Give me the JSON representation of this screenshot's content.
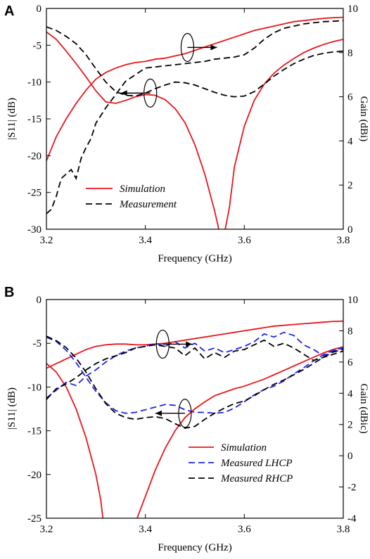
{
  "chart_data": [
    {
      "panel_label": "A",
      "type": "line",
      "xlabel": "Frequency (GHz)",
      "ylabel_left": "|S11| (dB)",
      "ylabel_right": "Gain (dBi)",
      "xlim": [
        3.2,
        3.8
      ],
      "ylim_left": [
        -30,
        0
      ],
      "ylim_right": [
        0,
        10
      ],
      "xticks": [
        "3.2",
        "3.4",
        "3.6",
        "3.8"
      ],
      "yticks_left": [
        "0",
        "-5",
        "-10",
        "-15",
        "-20",
        "-25",
        "-30"
      ],
      "yticks_right": [
        "10",
        "8",
        "6",
        "4",
        "2",
        "0"
      ],
      "grid": false,
      "legend_position": "center",
      "legend": [
        {
          "label": "Simulation",
          "color": "#e8161b",
          "dash": "solid"
        },
        {
          "label": "Measurement",
          "color": "#000000",
          "dash": "dashed"
        }
      ],
      "series": [
        {
          "name": "Simulation",
          "quantity": "S11",
          "axis": "left",
          "color": "#e8161b",
          "dash": "solid",
          "x": [
            3.2,
            3.22,
            3.24,
            3.26,
            3.28,
            3.3,
            3.32,
            3.34,
            3.36,
            3.38,
            3.4,
            3.42,
            3.44,
            3.46,
            3.48,
            3.5,
            3.52,
            3.54,
            3.55,
            3.56,
            3.57,
            3.58,
            3.6,
            3.62,
            3.64,
            3.66,
            3.68,
            3.7,
            3.72,
            3.74,
            3.76,
            3.78,
            3.8
          ],
          "y": [
            -3.2,
            -4.2,
            -5.8,
            -7.5,
            -9.3,
            -11.2,
            -12.7,
            -12.9,
            -12.5,
            -12.0,
            -11.7,
            -11.8,
            -12.4,
            -13.6,
            -15.5,
            -18.5,
            -22.5,
            -27.5,
            -30.5,
            -30.5,
            -27.0,
            -21.5,
            -16.0,
            -12.5,
            -10.3,
            -8.8,
            -7.7,
            -6.8,
            -6.0,
            -5.4,
            -4.9,
            -4.5,
            -4.2
          ]
        },
        {
          "name": "Simulation",
          "quantity": "Gain",
          "axis": "right",
          "color": "#e8161b",
          "dash": "solid",
          "x": [
            3.2,
            3.22,
            3.24,
            3.26,
            3.28,
            3.3,
            3.32,
            3.34,
            3.36,
            3.38,
            3.4,
            3.42,
            3.44,
            3.46,
            3.48,
            3.5,
            3.52,
            3.54,
            3.56,
            3.58,
            3.6,
            3.62,
            3.64,
            3.66,
            3.68,
            3.7,
            3.72,
            3.74,
            3.76,
            3.78,
            3.8
          ],
          "y": [
            3.1,
            4.2,
            5.0,
            5.7,
            6.3,
            6.8,
            7.1,
            7.3,
            7.45,
            7.55,
            7.6,
            7.7,
            7.75,
            7.85,
            7.95,
            8.1,
            8.25,
            8.4,
            8.55,
            8.7,
            8.85,
            9.0,
            9.1,
            9.2,
            9.3,
            9.4,
            9.45,
            9.5,
            9.55,
            9.58,
            9.6
          ]
        },
        {
          "name": "Measurement",
          "quantity": "S11",
          "axis": "left",
          "color": "#000000",
          "dash": "dashed",
          "x": [
            3.2,
            3.22,
            3.24,
            3.26,
            3.28,
            3.3,
            3.32,
            3.34,
            3.36,
            3.38,
            3.4,
            3.42,
            3.44,
            3.46,
            3.48,
            3.5,
            3.52,
            3.54,
            3.56,
            3.58,
            3.6,
            3.62,
            3.64,
            3.66,
            3.68,
            3.7,
            3.72,
            3.74,
            3.76,
            3.78,
            3.8
          ],
          "y": [
            -2.5,
            -3.0,
            -3.8,
            -4.8,
            -6.3,
            -8.2,
            -10.0,
            -11.3,
            -11.8,
            -11.9,
            -11.5,
            -10.9,
            -10.4,
            -10.0,
            -10.1,
            -10.4,
            -10.9,
            -11.4,
            -11.8,
            -12.0,
            -11.9,
            -11.3,
            -10.3,
            -9.2,
            -8.3,
            -7.5,
            -6.9,
            -6.4,
            -6.1,
            -5.9,
            -5.8
          ]
        },
        {
          "name": "Measurement",
          "quantity": "Gain",
          "axis": "right",
          "color": "#000000",
          "dash": "dashed",
          "x": [
            3.2,
            3.21,
            3.22,
            3.23,
            3.24,
            3.25,
            3.26,
            3.27,
            3.28,
            3.29,
            3.3,
            3.32,
            3.34,
            3.36,
            3.38,
            3.4,
            3.42,
            3.44,
            3.46,
            3.48,
            3.5,
            3.52,
            3.54,
            3.56,
            3.58,
            3.6,
            3.62,
            3.64,
            3.66,
            3.68,
            3.7,
            3.72,
            3.74,
            3.76,
            3.78,
            3.8
          ],
          "y": [
            0.7,
            0.9,
            1.5,
            2.3,
            2.5,
            2.7,
            2.3,
            3.2,
            3.7,
            4.1,
            4.8,
            5.5,
            6.1,
            6.7,
            7.0,
            7.3,
            7.35,
            7.4,
            7.45,
            7.5,
            7.55,
            7.6,
            7.7,
            7.75,
            7.8,
            7.9,
            8.2,
            8.6,
            8.9,
            9.1,
            9.2,
            9.3,
            9.35,
            9.4,
            9.42,
            9.45
          ]
        }
      ],
      "annotations": [
        {
          "kind": "ellipse-arrow",
          "at": [
            3.41,
            -11.5
          ],
          "direction": "left"
        },
        {
          "kind": "ellipse-arrow",
          "at": [
            3.485,
            -5.3
          ],
          "direction": "right"
        }
      ]
    },
    {
      "panel_label": "B",
      "type": "line",
      "xlabel": "Frequency (GHz)",
      "ylabel_left": "|S11| (dB)",
      "ylabel_right": "Gain (dBic)",
      "xlim": [
        3.2,
        3.8
      ],
      "ylim_left": [
        -25,
        0
      ],
      "ylim_right": [
        -4,
        10
      ],
      "xticks": [
        "3.2",
        "3.4",
        "3.6",
        "3.8"
      ],
      "yticks_left": [
        "0",
        "-5",
        "-10",
        "-15",
        "-20",
        "-25"
      ],
      "yticks_right": [
        "10",
        "8",
        "6",
        "4",
        "2",
        "0",
        "-2",
        "-4"
      ],
      "grid": false,
      "legend_position": "bottom-right",
      "legend": [
        {
          "label": "Simulation",
          "color": "#e8161b",
          "dash": "solid"
        },
        {
          "label": "Measured LHCP",
          "color": "#1f24e6",
          "dash": "dashed"
        },
        {
          "label": "Measured RHCP",
          "color": "#000000",
          "dash": "dashed"
        }
      ],
      "series": [
        {
          "name": "Simulation",
          "quantity": "S11",
          "axis": "left",
          "color": "#e8161b",
          "dash": "solid",
          "x": [
            3.2,
            3.22,
            3.24,
            3.26,
            3.28,
            3.3,
            3.31,
            3.315,
            3.38,
            3.39,
            3.4,
            3.42,
            3.44,
            3.46,
            3.48,
            3.5,
            3.52,
            3.54,
            3.56,
            3.58,
            3.6,
            3.62,
            3.64,
            3.66,
            3.68,
            3.7,
            3.72,
            3.74,
            3.76,
            3.78,
            3.8
          ],
          "y": [
            -7.3,
            -8.3,
            -10.0,
            -12.5,
            -15.8,
            -20.0,
            -23.0,
            -25.5,
            -25.5,
            -24.0,
            -22.5,
            -19.5,
            -17.0,
            -15.0,
            -13.5,
            -12.5,
            -11.7,
            -11.0,
            -10.6,
            -10.2,
            -9.9,
            -9.5,
            -9.1,
            -8.6,
            -8.1,
            -7.6,
            -7.1,
            -6.6,
            -6.1,
            -5.7,
            -5.4
          ]
        },
        {
          "name": "Simulation",
          "quantity": "Gain",
          "axis": "right",
          "color": "#e8161b",
          "dash": "solid",
          "x": [
            3.2,
            3.22,
            3.24,
            3.26,
            3.28,
            3.3,
            3.32,
            3.34,
            3.36,
            3.38,
            3.4,
            3.42,
            3.44,
            3.46,
            3.48,
            3.5,
            3.52,
            3.54,
            3.56,
            3.58,
            3.6,
            3.62,
            3.64,
            3.66,
            3.68,
            3.7,
            3.72,
            3.74,
            3.76,
            3.78,
            3.8
          ],
          "y": [
            5.6,
            5.9,
            6.2,
            6.5,
            6.8,
            7.0,
            7.1,
            7.15,
            7.15,
            7.1,
            7.1,
            7.15,
            7.2,
            7.3,
            7.4,
            7.5,
            7.6,
            7.7,
            7.8,
            7.9,
            8.0,
            8.1,
            8.2,
            8.3,
            8.35,
            8.4,
            8.45,
            8.5,
            8.55,
            8.6,
            8.62
          ]
        },
        {
          "name": "Measured LHCP",
          "quantity": "S11",
          "axis": "left",
          "color": "#1f24e6",
          "dash": "dashed",
          "x": [
            3.2,
            3.22,
            3.24,
            3.26,
            3.28,
            3.3,
            3.32,
            3.34,
            3.36,
            3.38,
            3.4,
            3.42,
            3.44,
            3.46,
            3.48,
            3.5,
            3.52,
            3.54,
            3.56,
            3.58,
            3.6,
            3.62,
            3.64,
            3.66,
            3.68,
            3.7,
            3.72,
            3.74,
            3.76,
            3.78,
            3.8
          ],
          "y": [
            -4.3,
            -4.8,
            -5.8,
            -7.2,
            -8.9,
            -10.5,
            -11.8,
            -12.7,
            -13.0,
            -12.9,
            -12.6,
            -12.3,
            -12.0,
            -12.1,
            -12.6,
            -12.9,
            -12.9,
            -13.0,
            -12.9,
            -12.4,
            -11.7,
            -10.9,
            -10.3,
            -9.9,
            -9.3,
            -8.5,
            -7.8,
            -7.0,
            -6.3,
            -5.8,
            -5.5
          ]
        },
        {
          "name": "Measured LHCP",
          "quantity": "Gain",
          "axis": "right",
          "color": "#1f24e6",
          "dash": "dashed",
          "x": [
            3.2,
            3.22,
            3.24,
            3.26,
            3.28,
            3.3,
            3.32,
            3.34,
            3.36,
            3.38,
            3.4,
            3.42,
            3.44,
            3.46,
            3.48,
            3.5,
            3.52,
            3.54,
            3.56,
            3.58,
            3.6,
            3.62,
            3.64,
            3.66,
            3.68,
            3.7,
            3.72,
            3.74,
            3.76,
            3.78,
            3.8
          ],
          "y": [
            3.7,
            4.2,
            4.7,
            4.5,
            5.1,
            5.5,
            6.0,
            6.4,
            6.7,
            6.9,
            7.0,
            7.2,
            7.0,
            7.3,
            6.9,
            7.2,
            6.7,
            6.9,
            6.6,
            6.8,
            7.0,
            7.3,
            7.8,
            7.6,
            7.9,
            7.7,
            7.1,
            6.8,
            6.4,
            6.7,
            6.9
          ]
        },
        {
          "name": "Measured RHCP",
          "quantity": "S11",
          "axis": "left",
          "color": "#000000",
          "dash": "dashed",
          "x": [
            3.2,
            3.22,
            3.24,
            3.26,
            3.28,
            3.3,
            3.32,
            3.34,
            3.36,
            3.38,
            3.4,
            3.42,
            3.44,
            3.46,
            3.48,
            3.5,
            3.52,
            3.54,
            3.56,
            3.58,
            3.6,
            3.62,
            3.64,
            3.66,
            3.68,
            3.7,
            3.72,
            3.74,
            3.76,
            3.78,
            3.8
          ],
          "y": [
            -4.2,
            -4.7,
            -5.5,
            -6.7,
            -8.3,
            -10.2,
            -11.9,
            -13.0,
            -13.5,
            -13.7,
            -13.5,
            -13.4,
            -13.6,
            -14.2,
            -14.7,
            -14.5,
            -13.7,
            -13.0,
            -12.4,
            -11.9,
            -11.6,
            -11.0,
            -10.3,
            -9.7,
            -9.2,
            -8.6,
            -8.0,
            -7.3,
            -6.6,
            -6.0,
            -5.7
          ]
        },
        {
          "name": "Measured RHCP",
          "quantity": "Gain",
          "axis": "right",
          "color": "#000000",
          "dash": "dashed",
          "x": [
            3.2,
            3.22,
            3.24,
            3.26,
            3.28,
            3.3,
            3.32,
            3.34,
            3.36,
            3.38,
            3.4,
            3.42,
            3.44,
            3.46,
            3.48,
            3.5,
            3.52,
            3.54,
            3.56,
            3.58,
            3.6,
            3.62,
            3.64,
            3.66,
            3.68,
            3.7,
            3.72,
            3.74,
            3.76,
            3.78,
            3.8
          ],
          "y": [
            3.6,
            4.3,
            4.6,
            5.0,
            5.5,
            5.9,
            6.2,
            6.4,
            6.6,
            6.9,
            7.0,
            7.1,
            7.0,
            6.9,
            6.4,
            6.9,
            6.2,
            6.6,
            6.3,
            6.7,
            6.8,
            7.1,
            7.4,
            7.0,
            7.2,
            6.9,
            6.5,
            6.1,
            6.3,
            6.5,
            6.7
          ]
        }
      ],
      "annotations": [
        {
          "kind": "ellipse-arrow",
          "at": [
            3.48,
            -13.0
          ],
          "direction": "left"
        },
        {
          "kind": "ellipse-arrow",
          "at": [
            3.435,
            -5.1
          ],
          "direction": "right"
        }
      ]
    }
  ]
}
